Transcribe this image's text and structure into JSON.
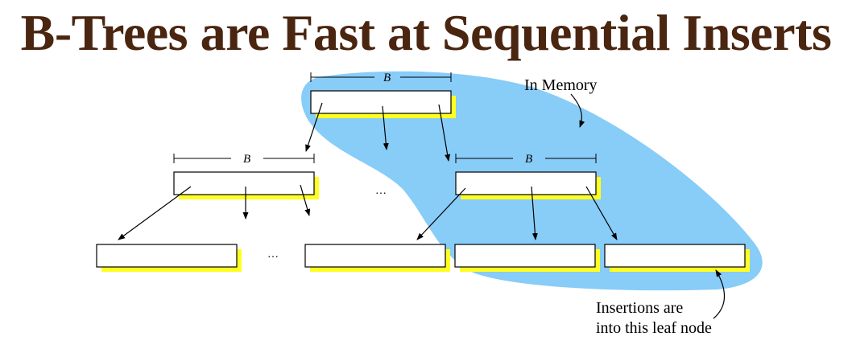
{
  "title": "B-Trees are Fast at Sequential Inserts",
  "width_marker_label": "B",
  "ellipsis": "…",
  "annotations": {
    "memory_region": "In Memory",
    "insert_point_line1": "Insertions are",
    "insert_point_line2": "into this leaf node"
  },
  "colors": {
    "title": "#4a2510",
    "memory_region": "#88ccf8",
    "node_shadow": "#ffff22"
  }
}
